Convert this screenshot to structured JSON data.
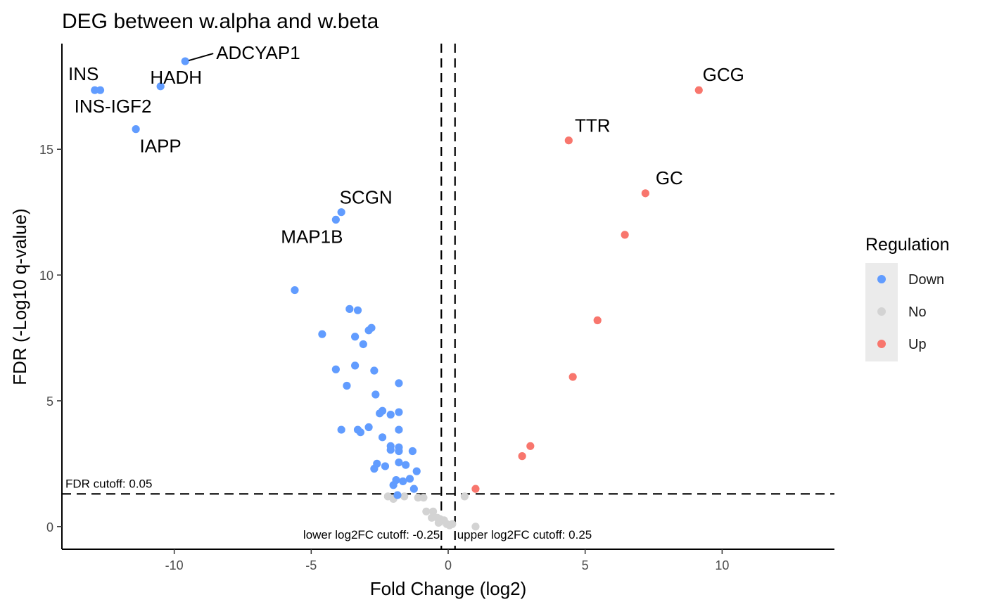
{
  "chart_data": {
    "type": "scatter",
    "title": "DEG between w.alpha and w.beta",
    "xlabel": "Fold Change (log2)",
    "ylabel": "FDR (-Log10 q-value)",
    "xlim": [
      -14.1,
      14.1
    ],
    "ylim": [
      -0.9,
      19.2
    ],
    "xticks": [
      -10,
      -5,
      0,
      5,
      10
    ],
    "xtick_labels": [
      "-10",
      "-5",
      "0",
      "5",
      "10"
    ],
    "yticks": [
      0,
      5,
      10,
      15
    ],
    "ytick_labels": [
      "0",
      "5",
      "10",
      "15"
    ],
    "grid": false,
    "colors": {
      "Down": "#619CFF",
      "No": "#D3D3D3",
      "Up": "#F8766D"
    },
    "legend": {
      "title": "Regulation",
      "position": "right",
      "entries": [
        "Down",
        "No",
        "Up"
      ]
    },
    "cutoffs": {
      "fdr": {
        "value": 1.3,
        "label": "FDR cutoff: 0.05"
      },
      "lower_log2fc": {
        "value": -0.25,
        "label": "lower log2FC cutoff: -0.25"
      },
      "upper_log2fc": {
        "value": 0.25,
        "label": "upper log2FC cutoff: 0.25"
      }
    },
    "series": [
      {
        "name": "Down",
        "x": [
          -9.6,
          -10.5,
          -12.9,
          -12.7,
          -11.4,
          -3.9,
          -4.1,
          -5.6,
          -3.6,
          -3.3,
          -4.6,
          -2.9,
          -2.8,
          -3.4,
          -3.1,
          -4.1,
          -3.4,
          -2.7,
          -3.7,
          -1.8,
          -2.65,
          -2.4,
          -2.5,
          -2.1,
          -1.8,
          -3.9,
          -3.3,
          -2.9,
          -3.2,
          -1.8,
          -2.4,
          -1.8,
          -2.1,
          -2.1,
          -1.3,
          -1.8,
          -2.6,
          -2.3,
          -2.7,
          -1.55,
          -1.8,
          -1.15,
          -2.0,
          -1.25,
          -1.9,
          -1.65,
          -1.4,
          -1.85
        ],
        "y": [
          18.5,
          17.5,
          17.35,
          17.35,
          15.8,
          12.5,
          12.2,
          9.4,
          8.65,
          8.6,
          7.65,
          7.8,
          7.9,
          7.55,
          7.25,
          6.25,
          6.4,
          6.2,
          5.6,
          5.7,
          5.25,
          4.6,
          4.5,
          4.45,
          4.55,
          3.85,
          3.85,
          3.95,
          3.75,
          3.85,
          3.55,
          3.15,
          3.2,
          3.05,
          3.0,
          3.0,
          2.5,
          2.4,
          2.3,
          2.45,
          2.55,
          2.2,
          1.65,
          1.5,
          1.85,
          1.8,
          1.9,
          1.25
        ]
      },
      {
        "name": "No",
        "x": [
          -2.2,
          -2.0,
          -1.6,
          -1.1,
          -0.9,
          -0.8,
          -0.55,
          -0.4,
          -0.3,
          -0.15,
          -0.05,
          0.05,
          0.15,
          0.6,
          1.0,
          -0.6,
          -0.35
        ],
        "y": [
          1.2,
          1.1,
          1.2,
          1.15,
          1.15,
          0.6,
          0.6,
          0.35,
          0.3,
          0.25,
          0.1,
          0.05,
          0.1,
          1.2,
          0.0,
          0.35,
          0.15
        ]
      },
      {
        "name": "Up",
        "x": [
          9.15,
          4.4,
          7.2,
          6.45,
          5.45,
          4.55,
          3.0,
          2.7,
          1.0
        ],
        "y": [
          17.35,
          15.35,
          13.25,
          11.6,
          8.2,
          5.95,
          3.2,
          2.8,
          1.5
        ]
      }
    ],
    "annotations": [
      {
        "text": "ADCYAP1",
        "x": -9.6,
        "y": 18.5
      },
      {
        "text": "HADH",
        "x": -10.5,
        "y": 17.5
      },
      {
        "text": "INS",
        "x": -12.9,
        "y": 17.35
      },
      {
        "text": "INS-IGF2",
        "x": -12.7,
        "y": 17.35
      },
      {
        "text": "IAPP",
        "x": -11.4,
        "y": 15.8
      },
      {
        "text": "SCGN",
        "x": -3.9,
        "y": 12.5
      },
      {
        "text": "MAP1B",
        "x": -4.1,
        "y": 12.2
      },
      {
        "text": "GCG",
        "x": 9.15,
        "y": 17.35
      },
      {
        "text": "TTR",
        "x": 4.4,
        "y": 15.35
      },
      {
        "text": "GC",
        "x": 7.2,
        "y": 13.25
      }
    ]
  }
}
